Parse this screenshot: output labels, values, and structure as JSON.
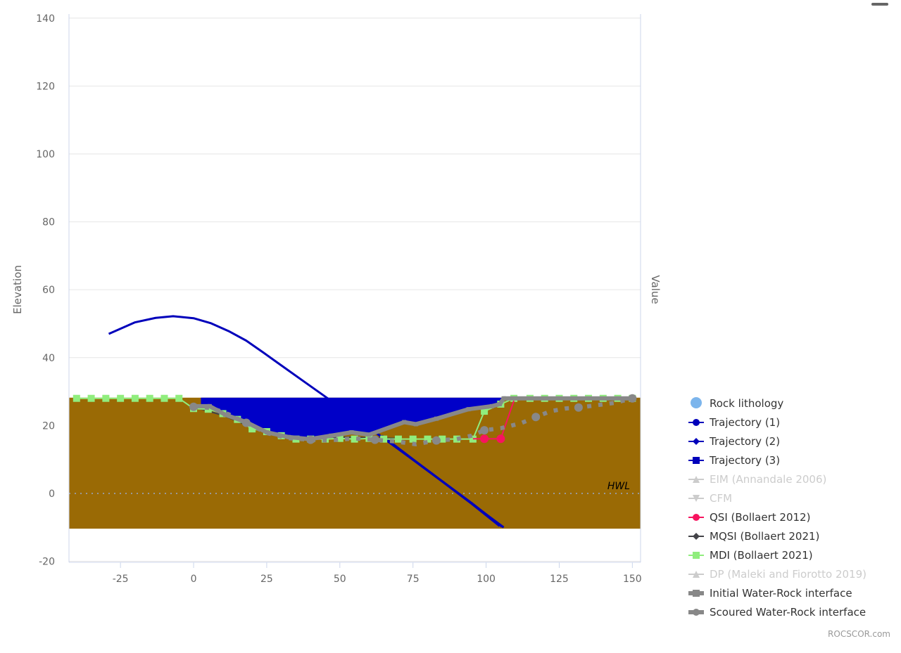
{
  "chart_data": {
    "type": "line",
    "xlabel": "",
    "ylabel": "Elevation",
    "y2label": "Value",
    "xlim": [
      -42.6,
      152.8
    ],
    "ylim": [
      -20.3,
      141.2
    ],
    "xticks": [
      -25,
      0,
      25,
      50,
      75,
      100,
      125,
      150
    ],
    "yticks": [
      -20,
      0,
      20,
      40,
      60,
      80,
      100,
      120,
      140
    ],
    "grid": true,
    "legend": "right",
    "plot_line": {
      "label": "HWL",
      "y": 0,
      "color": "#999999"
    },
    "series": [
      {
        "name": "Rock lithology",
        "kind": "area",
        "color": "#9A6A05",
        "legend_color": "#7CB5EC",
        "visible": true,
        "points": [
          [
            -42.6,
            28.2
          ],
          [
            152.8,
            28.2
          ]
        ],
        "base": -10.4
      },
      {
        "name": "Trajectory (1)",
        "kind": "line",
        "color": "#0000BB",
        "marker": "circle",
        "visible": true,
        "points": [
          [
            -29,
            47
          ],
          [
            -20,
            50.4
          ],
          [
            -13,
            51.7
          ],
          [
            -7,
            52.2
          ],
          [
            0,
            51.6
          ],
          [
            6,
            50.1
          ],
          [
            12,
            47.8
          ],
          [
            18,
            45
          ],
          [
            24,
            41.4
          ],
          [
            30,
            37.7
          ],
          [
            38,
            32.8
          ],
          [
            45.2,
            28.4
          ],
          [
            55,
            22.3
          ],
          [
            64,
            16.8
          ],
          [
            75,
            10
          ],
          [
            85,
            3.6
          ],
          [
            95,
            -2.8
          ],
          [
            105.4,
            -9.8
          ]
        ]
      },
      {
        "name": "Trajectory (2)",
        "kind": "line",
        "color": "#0000BB",
        "marker": "diamond",
        "visible": true,
        "points": [
          [
            63,
            17.5
          ],
          [
            75,
            9.9
          ],
          [
            85,
            3.5
          ],
          [
            95,
            -3
          ],
          [
            104.6,
            -9.6
          ]
        ]
      },
      {
        "name": "Trajectory (3)",
        "kind": "line",
        "color": "#0000BB",
        "marker": "square",
        "visible": true,
        "points": [
          [
            64.4,
            17
          ],
          [
            76,
            9.4
          ],
          [
            86,
            2.9
          ],
          [
            96,
            -3.6
          ],
          [
            106,
            -10
          ]
        ]
      },
      {
        "name": "EIM (Annandale 2006)",
        "kind": "line",
        "color": "#CCCCCC",
        "marker": "triangle",
        "visible": false,
        "points": []
      },
      {
        "name": "CFM",
        "kind": "line",
        "color": "#CCCCCC",
        "marker": "triangle-down",
        "visible": false,
        "points": []
      },
      {
        "name": "Water",
        "kind": "water",
        "color": "#0000C8",
        "visible": true,
        "in_legend": false,
        "points": [
          [
            2.5,
            28.2
          ],
          [
            105.4,
            28.2
          ],
          [
            104.7,
            26.3
          ],
          [
            102,
            25.7
          ],
          [
            94,
            24.8
          ],
          [
            83,
            22
          ],
          [
            76,
            20.4
          ],
          [
            72,
            21
          ],
          [
            60,
            17.3
          ],
          [
            54,
            18
          ],
          [
            47,
            17
          ],
          [
            39.7,
            16
          ],
          [
            32.5,
            16.6
          ],
          [
            25,
            18
          ],
          [
            18,
            21
          ],
          [
            10.8,
            23.2
          ],
          [
            5.5,
            25.7
          ],
          [
            2.5,
            25.7
          ]
        ]
      },
      {
        "name": "MQSI (Bollaert 2021)",
        "kind": "line",
        "color": "#434348",
        "marker": "diamond",
        "visible": true,
        "points": [
          [
            0,
            25.5
          ],
          [
            10,
            23
          ],
          [
            20,
            19.5
          ],
          [
            30,
            16.8
          ],
          [
            40,
            16.2
          ],
          [
            50,
            16.6
          ],
          [
            60,
            16.4
          ],
          [
            70,
            16.2
          ]
        ]
      },
      {
        "name": "MDI (Bollaert 2021)",
        "kind": "line",
        "color": "#90ED7D",
        "marker": "square",
        "visible": true,
        "points": [
          [
            -40,
            28
          ],
          [
            -35,
            28
          ],
          [
            -30,
            28
          ],
          [
            -25,
            28
          ],
          [
            -20,
            28
          ],
          [
            -15,
            28
          ],
          [
            -10,
            28
          ],
          [
            -5,
            28
          ],
          [
            0,
            25
          ],
          [
            5,
            24.8
          ],
          [
            10,
            23.5
          ],
          [
            15,
            21.8
          ],
          [
            20,
            19
          ],
          [
            25,
            18.2
          ],
          [
            30,
            17
          ],
          [
            35,
            16
          ],
          [
            40,
            16
          ],
          [
            45,
            16
          ],
          [
            50,
            16.2
          ],
          [
            55,
            16
          ],
          [
            60,
            16.2
          ],
          [
            65,
            16
          ],
          [
            70,
            16
          ],
          [
            75,
            16
          ],
          [
            80,
            16
          ],
          [
            85,
            16
          ],
          [
            90,
            16
          ],
          [
            95.5,
            16
          ],
          [
            99.4,
            24.2
          ],
          [
            105,
            26.3
          ],
          [
            109.5,
            28
          ],
          [
            115,
            28
          ],
          [
            120,
            28
          ],
          [
            125,
            28
          ],
          [
            130,
            28
          ],
          [
            135,
            28
          ],
          [
            140,
            28
          ],
          [
            145,
            28
          ],
          [
            150,
            28
          ]
        ]
      },
      {
        "name": "QSI (Bollaert 2012)",
        "kind": "line",
        "color": "#F7145F",
        "marker": "circle",
        "visible": true,
        "points": [
          [
            95.5,
            16.1
          ],
          [
            99.4,
            16.1
          ],
          [
            105,
            16.1
          ],
          [
            109.5,
            27.3
          ]
        ]
      },
      {
        "name": "DP (Maleki and Fiorotto 2019)",
        "kind": "line",
        "color": "#CCCCCC",
        "marker": "triangle",
        "visible": false,
        "points": []
      },
      {
        "name": "Initial Water-Rock interface",
        "kind": "line",
        "color": "#888888",
        "marker": "square",
        "visible": true,
        "points": [
          [
            0,
            25.7
          ],
          [
            5.5,
            25.7
          ],
          [
            10.8,
            23.2
          ],
          [
            18,
            21
          ],
          [
            25,
            18
          ],
          [
            32.5,
            16.6
          ],
          [
            39.7,
            16
          ],
          [
            47,
            17
          ],
          [
            54,
            18
          ],
          [
            60,
            17.3
          ],
          [
            72,
            21
          ],
          [
            76,
            20.4
          ],
          [
            83,
            22
          ],
          [
            94,
            24.8
          ],
          [
            102,
            25.7
          ],
          [
            104.7,
            26.3
          ],
          [
            106,
            28
          ],
          [
            150.4,
            28
          ]
        ]
      },
      {
        "name": "Scoured Water-Rock interface",
        "kind": "dotted",
        "color": "#888888",
        "marker": "circle",
        "visible": true,
        "points": [
          [
            0,
            25.5
          ],
          [
            6,
            25.2
          ],
          [
            12,
            23.3
          ],
          [
            18,
            20.8
          ],
          [
            25,
            17.8
          ],
          [
            32,
            16.3
          ],
          [
            40,
            15.8
          ],
          [
            46,
            15.6
          ],
          [
            55,
            16.2
          ],
          [
            62,
            15.8
          ],
          [
            69,
            15.3
          ],
          [
            76,
            14.5
          ],
          [
            83,
            15.6
          ],
          [
            90,
            16
          ],
          [
            95,
            17
          ],
          [
            99.4,
            18.6
          ],
          [
            105,
            19.2
          ],
          [
            112,
            20.7
          ],
          [
            117,
            22.5
          ],
          [
            122,
            24.2
          ],
          [
            127,
            25
          ],
          [
            131.6,
            25.3
          ],
          [
            138,
            26
          ],
          [
            144,
            26.7
          ],
          [
            150,
            28
          ]
        ]
      }
    ],
    "legend_order": [
      "Rock lithology",
      "Trajectory (1)",
      "Trajectory (2)",
      "Trajectory (3)",
      "EIM (Annandale 2006)",
      "CFM",
      "QSI (Bollaert 2012)",
      "MQSI (Bollaert 2021)",
      "MDI (Bollaert 2021)",
      "DP (Maleki and Fiorotto 2019)",
      "Initial Water-Rock interface",
      "Scoured Water-Rock interface"
    ]
  },
  "credits": "ROCSCOR.com",
  "menu_icon": "hamburger-icon"
}
